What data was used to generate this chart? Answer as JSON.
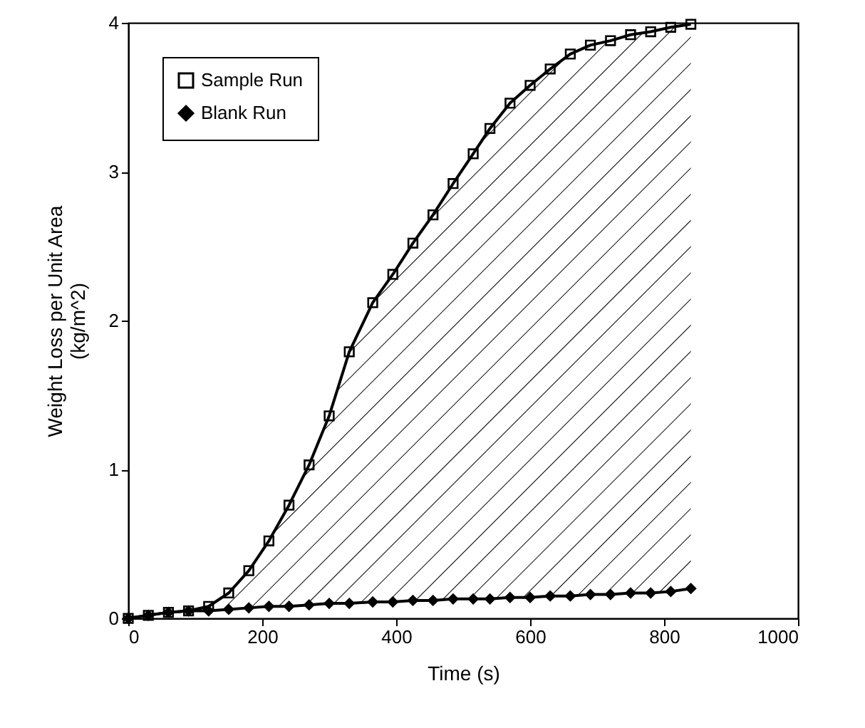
{
  "chart_data": {
    "type": "line",
    "xlabel": "Time (s)",
    "ylabel": "Weight Loss per Unit Area\n(kg/m^2)",
    "x": [
      0,
      30,
      60,
      90,
      120,
      150,
      180,
      210,
      240,
      270,
      300,
      330,
      365,
      395,
      425,
      455,
      485,
      515,
      540,
      570,
      600,
      630,
      660,
      690,
      720,
      750,
      780,
      810,
      840
    ],
    "series": [
      {
        "name": "Sample Run",
        "color": "#000000",
        "marker": "square",
        "values": [
          0,
          0.02,
          0.04,
          0.05,
          0.08,
          0.17,
          0.32,
          0.52,
          0.76,
          1.03,
          1.36,
          1.79,
          2.12,
          2.31,
          2.52,
          2.71,
          2.92,
          3.12,
          3.29,
          3.46,
          3.58,
          3.69,
          3.79,
          3.85,
          3.88,
          3.92,
          3.94,
          3.97,
          3.99
        ],
        "lower": [
          0,
          0.02,
          0.04,
          0.05,
          0.05,
          0.06,
          0.07,
          0.08,
          0.08,
          0.09,
          0.1,
          0.1,
          0.11,
          0.11,
          0.12,
          0.12,
          0.13,
          0.13,
          0.13,
          0.14,
          0.14,
          0.15,
          0.15,
          0.16,
          0.16,
          0.17,
          0.17,
          0.18,
          0.2
        ],
        "upper": [
          0,
          0.02,
          0.04,
          0.05,
          0.08,
          0.17,
          0.32,
          0.52,
          0.76,
          1.03,
          1.36,
          1.79,
          2.12,
          2.31,
          2.52,
          2.71,
          2.92,
          3.12,
          3.29,
          3.46,
          3.58,
          3.69,
          3.79,
          3.85,
          3.88,
          3.92,
          3.94,
          3.97,
          3.99
        ]
      },
      {
        "name": "Blank Run",
        "color": "#000000",
        "marker": "diamond",
        "values": [
          0,
          0.02,
          0.04,
          0.05,
          0.05,
          0.06,
          0.07,
          0.08,
          0.08,
          0.09,
          0.1,
          0.1,
          0.11,
          0.11,
          0.12,
          0.12,
          0.13,
          0.13,
          0.13,
          0.14,
          0.14,
          0.15,
          0.15,
          0.16,
          0.16,
          0.17,
          0.17,
          0.18,
          0.2
        ]
      }
    ],
    "xlim": [
      0,
      1000
    ],
    "xticks": [
      0,
      200,
      400,
      600,
      800,
      1000
    ],
    "ylim": [
      0,
      4
    ],
    "yticks": [
      0,
      1,
      2,
      3,
      4
    ],
    "legend": "top left",
    "grid": false
  }
}
